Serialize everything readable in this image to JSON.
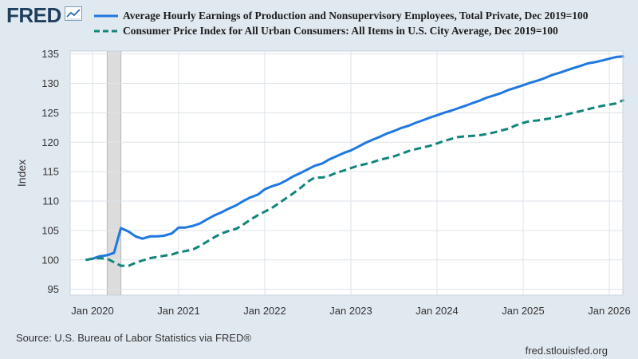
{
  "header": {
    "logo_text": "FRED",
    "logo_icon": "chart-line-icon"
  },
  "colors": {
    "background": "#e1e9f0",
    "plot_background": "#ffffff",
    "grid": "#dde3ea",
    "recession": "#dcdcdc",
    "series1": "#1f77e0",
    "series2": "#11857a"
  },
  "chart_data": {
    "type": "line",
    "title": "",
    "ylabel": "Index",
    "xlabel": "",
    "ylim": [
      94,
      135.5
    ],
    "xlim": [
      2020.0,
      2026.2
    ],
    "y_ticks": [
      95,
      100,
      105,
      110,
      115,
      120,
      125,
      130,
      135
    ],
    "x_ticks": [
      {
        "value": 2020.0,
        "label": "Jan 2020"
      },
      {
        "value": 2021.0,
        "label": "Jan 2021"
      },
      {
        "value": 2022.0,
        "label": "Jan 2022"
      },
      {
        "value": 2023.0,
        "label": "Jan 2023"
      },
      {
        "value": 2024.0,
        "label": "Jan 2024"
      },
      {
        "value": 2025.0,
        "label": "Jan 2025"
      },
      {
        "value": 2026.0,
        "label": "Jan 2026"
      }
    ],
    "grid": true,
    "recession_shading": [
      [
        2020.17,
        2020.33
      ]
    ],
    "series": [
      {
        "name": "Average Hourly Earnings of Production and Nonsupervisory Employees, Total Private, Dec 2019=100",
        "style": "solid",
        "points": [
          [
            2019.92,
            100.0
          ],
          [
            2020.0,
            100.2
          ],
          [
            2020.08,
            100.6
          ],
          [
            2020.17,
            100.8
          ],
          [
            2020.25,
            101.2
          ],
          [
            2020.33,
            105.4
          ],
          [
            2020.42,
            104.8
          ],
          [
            2020.5,
            104.0
          ],
          [
            2020.58,
            103.6
          ],
          [
            2020.67,
            104.0
          ],
          [
            2020.75,
            104.0
          ],
          [
            2020.83,
            104.1
          ],
          [
            2020.92,
            104.5
          ],
          [
            2021.0,
            105.5
          ],
          [
            2021.08,
            105.5
          ],
          [
            2021.17,
            105.8
          ],
          [
            2021.25,
            106.2
          ],
          [
            2021.33,
            106.9
          ],
          [
            2021.42,
            107.6
          ],
          [
            2021.5,
            108.1
          ],
          [
            2021.58,
            108.7
          ],
          [
            2021.67,
            109.3
          ],
          [
            2021.75,
            110.0
          ],
          [
            2021.83,
            110.6
          ],
          [
            2021.92,
            111.1
          ],
          [
            2022.0,
            112.0
          ],
          [
            2022.08,
            112.5
          ],
          [
            2022.17,
            112.9
          ],
          [
            2022.25,
            113.5
          ],
          [
            2022.33,
            114.2
          ],
          [
            2022.42,
            114.8
          ],
          [
            2022.5,
            115.4
          ],
          [
            2022.58,
            116.0
          ],
          [
            2022.67,
            116.4
          ],
          [
            2022.75,
            117.1
          ],
          [
            2022.83,
            117.6
          ],
          [
            2022.92,
            118.2
          ],
          [
            2023.0,
            118.6
          ],
          [
            2023.08,
            119.2
          ],
          [
            2023.17,
            119.9
          ],
          [
            2023.25,
            120.4
          ],
          [
            2023.33,
            120.9
          ],
          [
            2023.42,
            121.5
          ],
          [
            2023.5,
            121.9
          ],
          [
            2023.58,
            122.4
          ],
          [
            2023.67,
            122.8
          ],
          [
            2023.75,
            123.3
          ],
          [
            2023.83,
            123.7
          ],
          [
            2023.92,
            124.2
          ],
          [
            2024.0,
            124.6
          ],
          [
            2024.08,
            125.0
          ],
          [
            2024.17,
            125.4
          ],
          [
            2024.25,
            125.8
          ],
          [
            2024.33,
            126.2
          ],
          [
            2024.42,
            126.7
          ],
          [
            2024.5,
            127.1
          ],
          [
            2024.58,
            127.6
          ],
          [
            2024.67,
            128.0
          ],
          [
            2024.75,
            128.4
          ],
          [
            2024.83,
            128.9
          ],
          [
            2024.92,
            129.3
          ],
          [
            2025.0,
            129.7
          ],
          [
            2025.08,
            130.1
          ],
          [
            2025.17,
            130.5
          ],
          [
            2025.25,
            130.9
          ],
          [
            2025.33,
            131.4
          ],
          [
            2025.42,
            131.8
          ],
          [
            2025.5,
            132.2
          ],
          [
            2025.58,
            132.6
          ],
          [
            2025.67,
            133.0
          ],
          [
            2025.75,
            133.4
          ],
          [
            2025.83,
            133.6
          ],
          [
            2025.92,
            133.9
          ],
          [
            2026.0,
            134.2
          ],
          [
            2026.08,
            134.5
          ],
          [
            2026.17,
            134.6
          ]
        ]
      },
      {
        "name": "Consumer Price Index for All Urban Consumers: All Items in U.S. City Average, Dec 2019=100",
        "style": "dashed",
        "points": [
          [
            2019.92,
            100.0
          ],
          [
            2020.0,
            100.2
          ],
          [
            2020.08,
            100.3
          ],
          [
            2020.17,
            100.2
          ],
          [
            2020.25,
            99.6
          ],
          [
            2020.33,
            99.0
          ],
          [
            2020.42,
            99.0
          ],
          [
            2020.5,
            99.5
          ],
          [
            2020.58,
            99.9
          ],
          [
            2020.67,
            100.3
          ],
          [
            2020.75,
            100.5
          ],
          [
            2020.83,
            100.7
          ],
          [
            2020.92,
            100.9
          ],
          [
            2021.0,
            101.3
          ],
          [
            2021.08,
            101.5
          ],
          [
            2021.17,
            101.8
          ],
          [
            2021.25,
            102.4
          ],
          [
            2021.33,
            103.1
          ],
          [
            2021.42,
            103.9
          ],
          [
            2021.5,
            104.5
          ],
          [
            2021.58,
            104.9
          ],
          [
            2021.67,
            105.3
          ],
          [
            2021.75,
            106.0
          ],
          [
            2021.83,
            106.8
          ],
          [
            2021.92,
            107.6
          ],
          [
            2022.0,
            108.2
          ],
          [
            2022.08,
            108.8
          ],
          [
            2022.17,
            109.7
          ],
          [
            2022.25,
            110.5
          ],
          [
            2022.33,
            111.3
          ],
          [
            2022.42,
            112.3
          ],
          [
            2022.5,
            113.3
          ],
          [
            2022.58,
            114.0
          ],
          [
            2022.67,
            114.0
          ],
          [
            2022.75,
            114.3
          ],
          [
            2022.83,
            114.8
          ],
          [
            2022.92,
            115.2
          ],
          [
            2023.0,
            115.6
          ],
          [
            2023.08,
            116.0
          ],
          [
            2023.17,
            116.3
          ],
          [
            2023.25,
            116.6
          ],
          [
            2023.33,
            117.0
          ],
          [
            2023.42,
            117.3
          ],
          [
            2023.5,
            117.6
          ],
          [
            2023.58,
            118.0
          ],
          [
            2023.67,
            118.5
          ],
          [
            2023.75,
            118.8
          ],
          [
            2023.83,
            119.1
          ],
          [
            2023.92,
            119.4
          ],
          [
            2024.0,
            119.8
          ],
          [
            2024.08,
            120.2
          ],
          [
            2024.17,
            120.6
          ],
          [
            2024.25,
            120.9
          ],
          [
            2024.33,
            121.0
          ],
          [
            2024.42,
            121.1
          ],
          [
            2024.5,
            121.2
          ],
          [
            2024.58,
            121.4
          ],
          [
            2024.67,
            121.7
          ],
          [
            2024.75,
            122.0
          ],
          [
            2024.83,
            122.3
          ],
          [
            2024.92,
            122.9
          ],
          [
            2025.0,
            123.3
          ],
          [
            2025.08,
            123.6
          ],
          [
            2025.17,
            123.7
          ],
          [
            2025.25,
            123.9
          ],
          [
            2025.33,
            124.1
          ],
          [
            2025.42,
            124.4
          ],
          [
            2025.5,
            124.7
          ],
          [
            2025.58,
            125.0
          ],
          [
            2025.67,
            125.3
          ],
          [
            2025.75,
            125.6
          ],
          [
            2025.83,
            125.9
          ],
          [
            2025.92,
            126.2
          ],
          [
            2026.0,
            126.4
          ],
          [
            2026.08,
            126.6
          ],
          [
            2026.17,
            127.2
          ]
        ]
      }
    ]
  },
  "footer": {
    "source": "Source: U.S. Bureau of Labor Statistics via FRED®",
    "site": "fred.stlouisfed.org"
  }
}
